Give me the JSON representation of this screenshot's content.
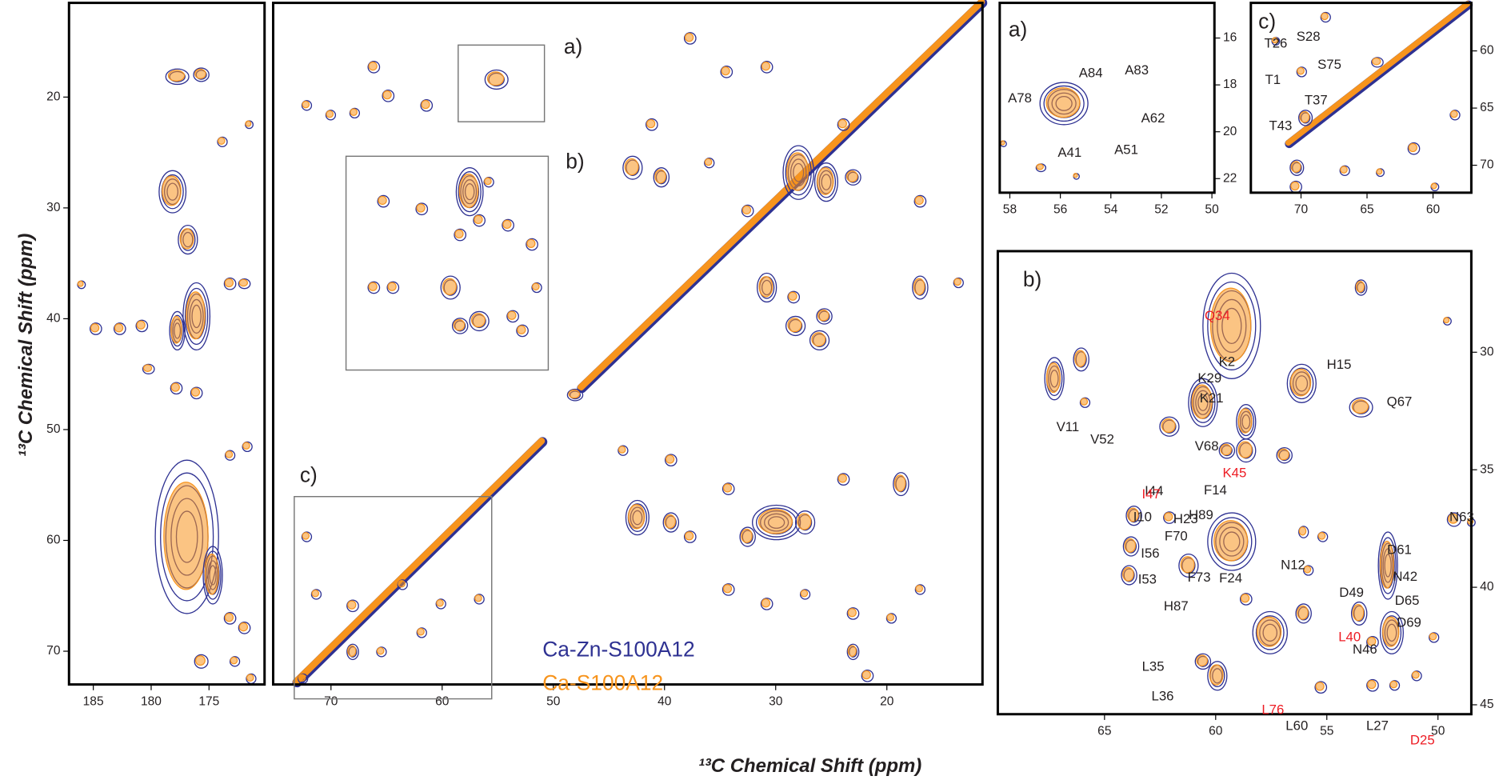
{
  "chart_data": [
    {
      "type": "spectrum",
      "ylabel": "¹³C Chemical Shift (ppm)",
      "xlim": [
        187.1,
        170.2
      ],
      "xticks": [
        185,
        180,
        175
      ],
      "ylim": [
        11.5,
        73.0
      ],
      "yticks": [
        20,
        30,
        40,
        50,
        60,
        70
      ]
    },
    {
      "type": "spectrum",
      "xlabel": "¹³C Chemical Shift (ppm)",
      "xlim": [
        75.2,
        11.4
      ],
      "xticks": [
        70,
        60,
        50,
        40,
        30,
        20
      ],
      "boxes": [
        "a)",
        "b)",
        "c)"
      ],
      "series": [
        {
          "name": "Ca-Zn-S100A12",
          "color": "#2e3192"
        },
        {
          "name": "Ca-S100A12",
          "color": "#f7941d"
        }
      ]
    },
    {
      "type": "spectrum",
      "label": "a)",
      "xlim": [
        58.4,
        49.9
      ],
      "xticks": [
        58,
        56,
        54,
        52,
        50
      ],
      "ylim": [
        14.5,
        22.6
      ],
      "yticks": [
        16,
        18,
        20,
        22
      ],
      "annotations": [
        {
          "text": "A78",
          "color": "#231f20"
        },
        {
          "text": "A84",
          "color": "#231f20"
        },
        {
          "text": "A83",
          "color": "#231f20"
        },
        {
          "text": "A62",
          "color": "#231f20"
        },
        {
          "text": "A51",
          "color": "#231f20"
        },
        {
          "text": "A41",
          "color": "#231f20"
        }
      ]
    },
    {
      "type": "spectrum",
      "label": "c)",
      "xlim": [
        73.8,
        57.1
      ],
      "xticks": [
        70,
        65,
        60
      ],
      "ylim": [
        55.8,
        72.4
      ],
      "yticks": [
        60,
        65,
        70
      ],
      "annotations": [
        {
          "text": "T26",
          "color": "#231f20"
        },
        {
          "text": "S28",
          "color": "#231f20"
        },
        {
          "text": "S75",
          "color": "#231f20"
        },
        {
          "text": "T1",
          "color": "#231f20"
        },
        {
          "text": "T37",
          "color": "#231f20"
        },
        {
          "text": "T43",
          "color": "#231f20"
        }
      ]
    },
    {
      "type": "spectrum",
      "label": "b)",
      "xlim": [
        69.8,
        48.5
      ],
      "xticks": [
        65,
        60,
        55,
        50
      ],
      "ylim": [
        25.7,
        45.4
      ],
      "yticks": [
        30,
        35,
        40,
        45
      ],
      "annotations": [
        {
          "text": "K2",
          "color": "#231f20"
        },
        {
          "text": "H15",
          "color": "#231f20"
        },
        {
          "text": "K29",
          "color": "#231f20"
        },
        {
          "text": "K21",
          "color": "#231f20"
        },
        {
          "text": "V11",
          "color": "#231f20"
        },
        {
          "text": "V52",
          "color": "#231f20"
        },
        {
          "text": "V68",
          "color": "#231f20"
        },
        {
          "text": "Q67",
          "color": "#231f20"
        },
        {
          "text": "I44",
          "color": "#231f20"
        },
        {
          "text": "I10",
          "color": "#231f20"
        },
        {
          "text": "I56",
          "color": "#231f20"
        },
        {
          "text": "I53",
          "color": "#231f20"
        },
        {
          "text": "F14",
          "color": "#231f20"
        },
        {
          "text": "H89",
          "color": "#231f20"
        },
        {
          "text": "H23",
          "color": "#231f20"
        },
        {
          "text": "F70",
          "color": "#231f20"
        },
        {
          "text": "F73",
          "color": "#231f20"
        },
        {
          "text": "F24",
          "color": "#231f20"
        },
        {
          "text": "H87",
          "color": "#231f20"
        },
        {
          "text": "N12",
          "color": "#231f20"
        },
        {
          "text": "N63",
          "color": "#231f20"
        },
        {
          "text": "D61",
          "color": "#231f20"
        },
        {
          "text": "N42",
          "color": "#231f20"
        },
        {
          "text": "D49",
          "color": "#231f20"
        },
        {
          "text": "D65",
          "color": "#231f20"
        },
        {
          "text": "D69",
          "color": "#231f20"
        },
        {
          "text": "N46",
          "color": "#231f20"
        },
        {
          "text": "L35",
          "color": "#231f20"
        },
        {
          "text": "L36",
          "color": "#231f20"
        },
        {
          "text": "L60",
          "color": "#231f20"
        },
        {
          "text": "L27",
          "color": "#231f20"
        },
        {
          "text": "Q34",
          "color": "#ed1c24"
        },
        {
          "text": "K45",
          "color": "#ed1c24"
        },
        {
          "text": "I47",
          "color": "#ed1c24"
        },
        {
          "text": "L40",
          "color": "#ed1c24"
        },
        {
          "text": "L76",
          "color": "#ed1c24"
        },
        {
          "text": "D25",
          "color": "#ed1c24"
        }
      ]
    }
  ]
}
